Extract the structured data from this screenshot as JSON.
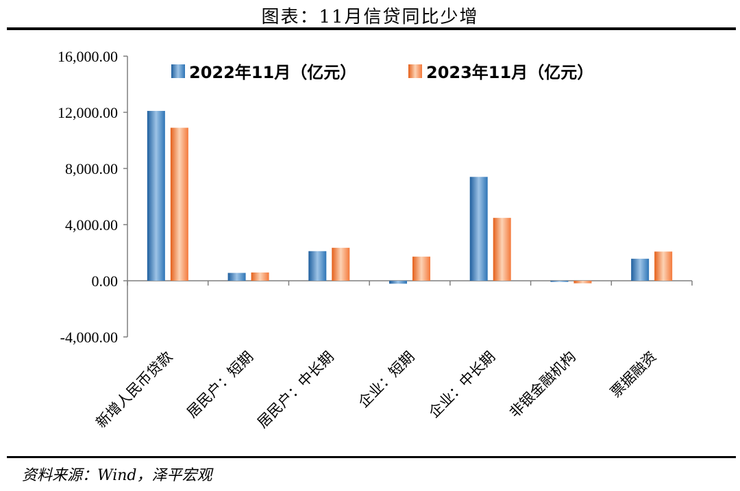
{
  "page": {
    "title": "图表：11月信贷同比少增",
    "source": "资料来源：Wind，泽平宏观"
  },
  "colors": {
    "series_2022": "#2E75B6",
    "series_2023": "#F4793B"
  },
  "chart_data": {
    "type": "bar",
    "title": "",
    "xlabel": "",
    "ylabel": "",
    "categories": [
      "新增人民币贷款",
      "居民户：短期",
      "居民户：中长期",
      "企业：短期",
      "企业：中长期",
      "非银金融机构",
      "票据融资"
    ],
    "series": [
      {
        "name": "2022年11月（亿元）",
        "values": [
          12100,
          560,
          2110,
          -210,
          7400,
          -80,
          1570
        ]
      },
      {
        "name": "2023年11月（亿元）",
        "values": [
          10900,
          590,
          2350,
          1720,
          4480,
          -180,
          2080
        ]
      }
    ],
    "ylim": [
      -4000,
      16000
    ],
    "yticks": [
      -4000,
      0,
      4000,
      8000,
      12000,
      16000
    ],
    "ytick_labels": [
      "-4,000.00",
      "0.00",
      "4,000.00",
      "8,000.00",
      "12,000.00",
      "16,000.00"
    ],
    "legend_position": "top",
    "grid": false
  }
}
